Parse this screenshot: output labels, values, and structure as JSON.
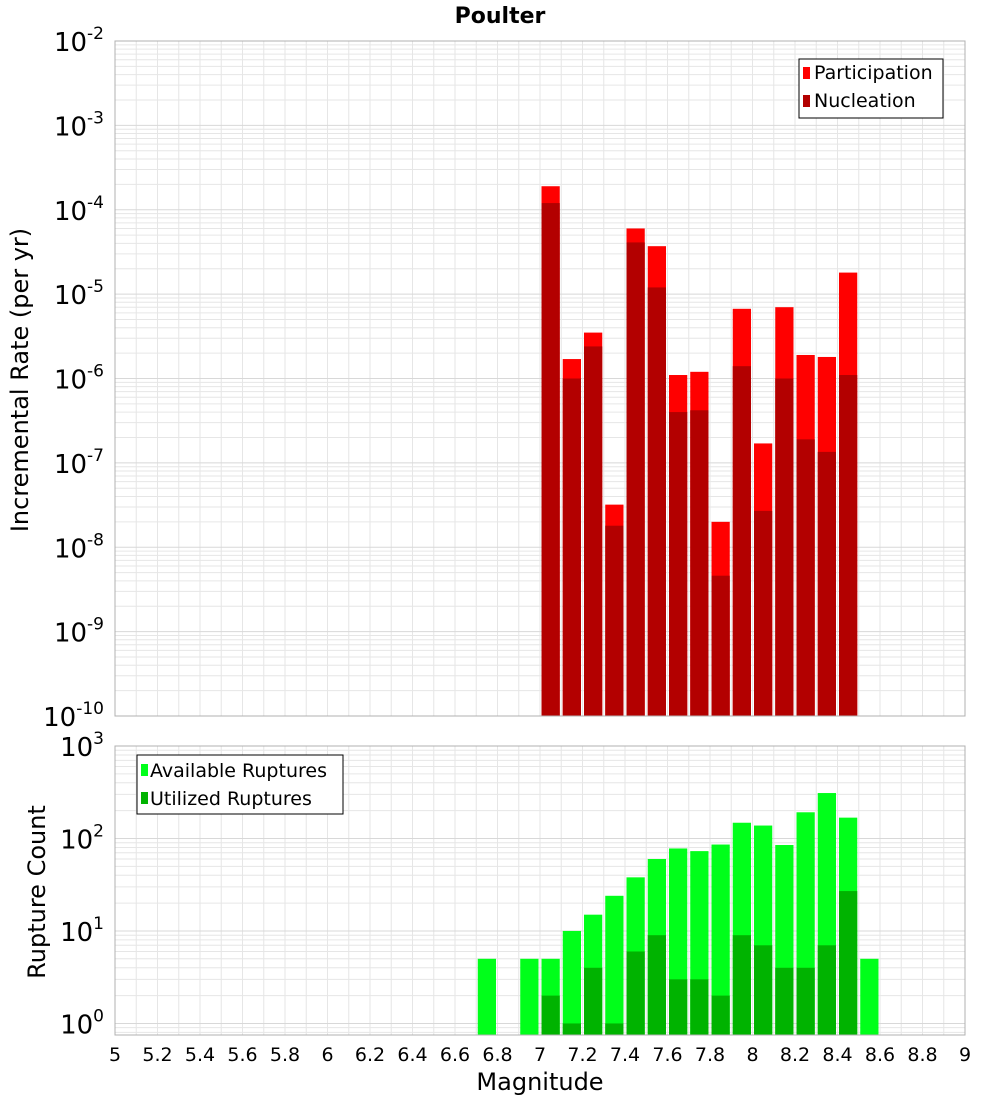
{
  "title": "Poulter",
  "xlabel": "Magnitude",
  "x_ticks": [
    "5",
    "5.2",
    "5.4",
    "5.6",
    "5.8",
    "6",
    "6.2",
    "6.4",
    "6.6",
    "6.8",
    "7",
    "7.2",
    "7.4",
    "7.6",
    "7.8",
    "8",
    "8.2",
    "8.4",
    "8.6",
    "8.8",
    "9"
  ],
  "colors": {
    "participation": "#ff0000",
    "nucleation": "#b30000",
    "available": "#00ff1a",
    "utilized": "#00b300",
    "grid": "#e6e6e6",
    "axis": "#b0b0b0"
  },
  "chart_data": [
    {
      "type": "bar",
      "ylabel": "Incremental Rate (per yr)",
      "yscale": "log",
      "ylim": [
        1e-10,
        0.01
      ],
      "xlim": [
        5,
        9
      ],
      "y_tick_bases": [
        "10",
        "10",
        "10",
        "10",
        "10",
        "10",
        "10",
        "10",
        "10"
      ],
      "y_tick_exponents": [
        "-10",
        "-9",
        "-8",
        "-7",
        "-6",
        "-5",
        "-4",
        "-3",
        "-2"
      ],
      "legend_position": "top-right",
      "x": [
        7.05,
        7.15,
        7.25,
        7.35,
        7.45,
        7.55,
        7.65,
        7.75,
        7.85,
        7.95,
        8.05,
        8.15,
        8.25,
        8.35,
        8.45
      ],
      "series": [
        {
          "name": "Participation",
          "values": [
            0.00019,
            1.7e-06,
            3.5e-06,
            3.2e-08,
            6e-05,
            3.7e-05,
            1.1e-06,
            1.2e-06,
            2e-08,
            6.7e-06,
            1.7e-07,
            7e-06,
            1.9e-06,
            1.8e-06,
            1.8e-05
          ]
        },
        {
          "name": "Nucleation",
          "values": [
            0.00012,
            1e-06,
            2.4e-06,
            1.8e-08,
            4.1e-05,
            1.2e-05,
            4e-07,
            4.2e-07,
            4.6e-09,
            1.4e-06,
            2.7e-08,
            1e-06,
            1.9e-07,
            1.35e-07,
            1.1e-06
          ]
        }
      ]
    },
    {
      "type": "bar",
      "ylabel": "Rupture Count",
      "yscale": "log",
      "ylim": [
        0.75,
        1000
      ],
      "xlim": [
        5,
        9
      ],
      "y_tick_bases": [
        "10",
        "10",
        "10",
        "10"
      ],
      "y_tick_exponents": [
        "0",
        "1",
        "2",
        "3"
      ],
      "legend_position": "top-left",
      "series": [
        {
          "name": "Available Ruptures",
          "x": [
            6.75,
            6.95,
            7.05,
            7.15,
            7.25,
            7.35,
            7.45,
            7.55,
            7.65,
            7.75,
            7.85,
            7.95,
            8.05,
            8.15,
            8.25,
            8.35,
            8.45,
            8.55
          ],
          "values": [
            5,
            5,
            5,
            10,
            15,
            24,
            38,
            60,
            78,
            73,
            86,
            148,
            138,
            85,
            192,
            310,
            168,
            5
          ]
        },
        {
          "name": "Utilized Ruptures",
          "x": [
            7.05,
            7.15,
            7.25,
            7.35,
            7.45,
            7.55,
            7.65,
            7.75,
            7.85,
            7.95,
            8.05,
            8.15,
            8.25,
            8.35,
            8.45
          ],
          "values": [
            2,
            1,
            4,
            1,
            6,
            9,
            3,
            3,
            2,
            9,
            7,
            4,
            4,
            7,
            27
          ]
        }
      ]
    }
  ]
}
